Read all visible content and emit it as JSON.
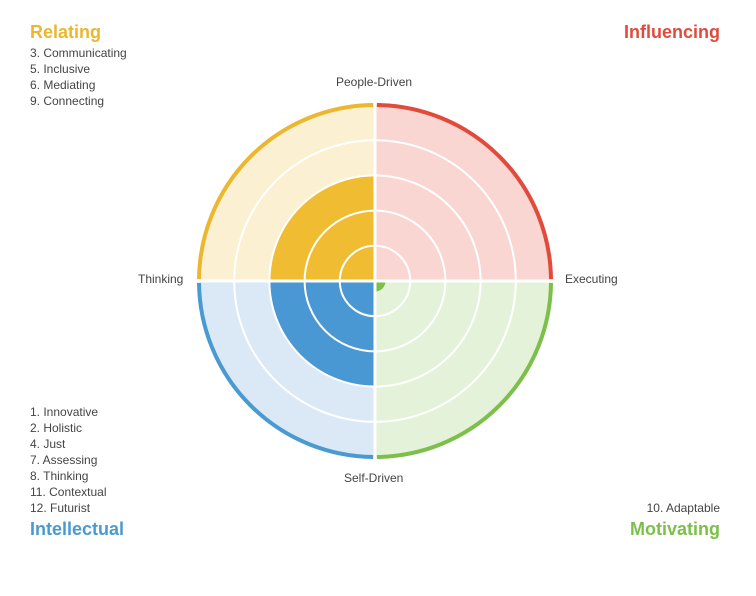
{
  "quadrants": {
    "relating": {
      "title": "Relating",
      "color": "#ecb72f",
      "items": [
        "3. Communicating",
        "5. Inclusive",
        "6. Mediating",
        "9. Connecting"
      ]
    },
    "influencing": {
      "title": "Influencing",
      "color": "#e14b3c",
      "items": []
    },
    "intellectual": {
      "title": "Intellectual",
      "color": "#4a9ad2",
      "items": [
        "1. Innovative",
        "2. Holistic",
        "4. Just",
        "7. Assessing",
        "8. Thinking",
        "11. Contextual",
        "12. Futurist"
      ]
    },
    "motivating": {
      "title": "Motivating",
      "color": "#7cbf4a",
      "items": [
        "10. Adaptable"
      ]
    }
  },
  "axes": {
    "top": "People-Driven",
    "right": "Executing",
    "left": "Thinking",
    "bottom": "Self-Driven"
  },
  "wheel": {
    "rings": 5,
    "levels": {
      "relating": 3,
      "influencing": 0,
      "intellectual": 3,
      "motivating": 0.3
    },
    "ring_fill_colors": {
      "relating": "#fcf0d2",
      "influencing": "#f9d6d2",
      "intellectual": "#dae9f5",
      "motivating": "#e4f2d9"
    },
    "core_colors": {
      "relating": "#f0bd32",
      "intellectual": "#4a98d3",
      "motivating": "#7cbf4a"
    }
  }
}
